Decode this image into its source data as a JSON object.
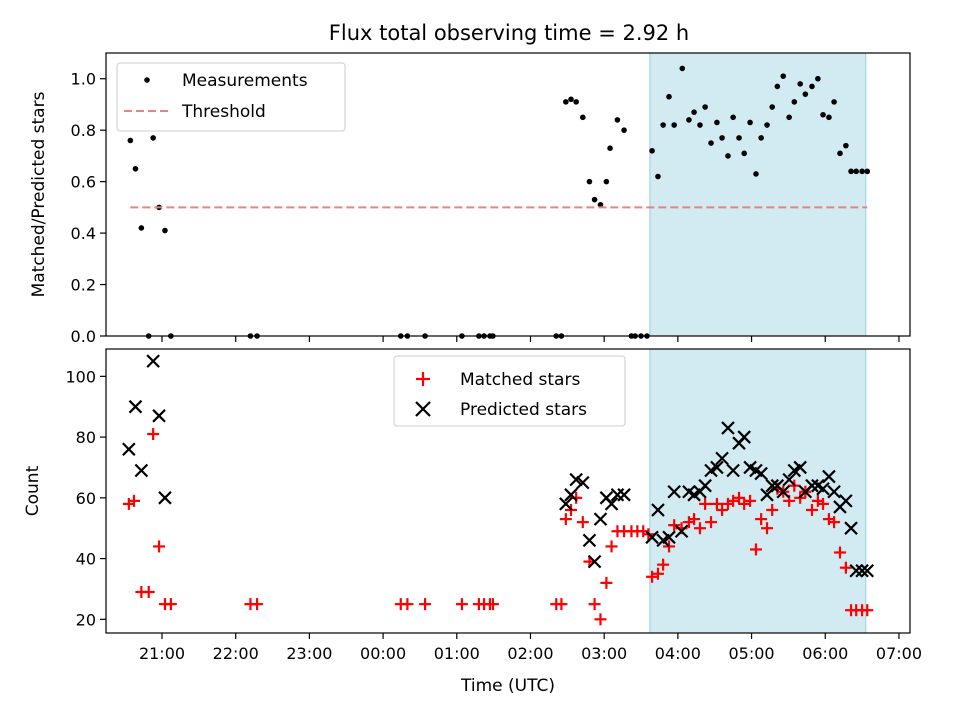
{
  "title": "Flux total observing time = 2.92 h",
  "chart_data": [
    {
      "type": "scatter",
      "ylabel": "Matched/Predicted stars",
      "ylim": [
        0,
        1.1
      ],
      "yticks": [
        0.0,
        0.2,
        0.4,
        0.6,
        0.8,
        1.0
      ],
      "ytick_labels": [
        "0.0",
        "0.2",
        "0.4",
        "0.6",
        "0.8",
        "1.0"
      ],
      "xlim": [
        20.24,
        31.15
      ],
      "highlight_span": [
        27.62,
        30.55
      ],
      "legend": {
        "placement": "top-left",
        "entries": [
          "Measurements",
          "Threshold"
        ]
      },
      "series": [
        {
          "name": "Measurements",
          "marker": "dot",
          "color": "#000000",
          "x": [
            20.57,
            20.64,
            20.72,
            20.88,
            20.96,
            21.04,
            20.82,
            21.12,
            22.2,
            22.29,
            24.24,
            24.33,
            24.57,
            25.07,
            25.3,
            25.37,
            25.45,
            25.49,
            26.35,
            26.42,
            26.48,
            26.55,
            26.62,
            26.71,
            26.8,
            26.87,
            26.95,
            27.03,
            27.08,
            27.18,
            27.27,
            27.37,
            27.42,
            27.5,
            27.58,
            27.65,
            27.73,
            27.8,
            27.88,
            27.95,
            28.06,
            28.15,
            28.22,
            28.3,
            28.37,
            28.45,
            28.53,
            28.6,
            28.68,
            28.75,
            28.83,
            28.9,
            28.98,
            29.06,
            29.13,
            29.21,
            29.28,
            29.35,
            29.43,
            29.51,
            29.58,
            29.66,
            29.73,
            29.82,
            29.9,
            29.97,
            30.05,
            30.12,
            30.2,
            30.28,
            30.35,
            30.42,
            30.5,
            30.57
          ],
          "y": [
            0.76,
            0.65,
            0.42,
            0.77,
            0.5,
            0.41,
            0.0,
            0.0,
            0.0,
            0.0,
            0.0,
            0.0,
            0.0,
            0.0,
            0.0,
            0.0,
            0.0,
            0.0,
            0.0,
            0.0,
            0.91,
            0.92,
            0.91,
            0.85,
            0.6,
            0.53,
            0.51,
            0.6,
            0.73,
            0.84,
            0.8,
            0.0,
            0.0,
            0.0,
            0.0,
            0.72,
            0.62,
            0.82,
            0.93,
            0.82,
            1.04,
            0.84,
            0.87,
            0.82,
            0.89,
            0.75,
            0.83,
            0.77,
            0.7,
            0.85,
            0.77,
            0.71,
            0.83,
            0.63,
            0.77,
            0.82,
            0.89,
            0.97,
            1.01,
            0.85,
            0.91,
            0.98,
            0.94,
            0.97,
            1.0,
            0.86,
            0.85,
            0.91,
            0.71,
            0.74,
            0.64,
            0.64,
            0.64,
            0.64
          ]
        },
        {
          "name": "Threshold",
          "marker": "dashed-line",
          "color": "#f08080",
          "x": [
            20.57,
            30.57
          ],
          "y": [
            0.5,
            0.5
          ]
        }
      ]
    },
    {
      "type": "scatter",
      "ylabel": "Count",
      "xlabel": "Time (UTC)",
      "ylim": [
        15.5,
        109
      ],
      "yticks": [
        20,
        40,
        60,
        80,
        100
      ],
      "ytick_labels": [
        "20",
        "40",
        "60",
        "80",
        "100"
      ],
      "xlim": [
        20.24,
        31.15
      ],
      "xticks": [
        21,
        22,
        23,
        24,
        25,
        26,
        27,
        28,
        29,
        30,
        31
      ],
      "xtick_labels": [
        "21:00",
        "22:00",
        "23:00",
        "00:00",
        "01:00",
        "02:00",
        "03:00",
        "04:00",
        "05:00",
        "06:00",
        "07:00"
      ],
      "highlight_span": [
        27.62,
        30.55
      ],
      "legend": {
        "placement": "upper-center",
        "entries": [
          "Matched stars",
          "Predicted stars"
        ]
      },
      "series": [
        {
          "name": "Matched stars",
          "marker": "plus",
          "color": "#ff0000",
          "x": [
            20.55,
            20.62,
            20.72,
            20.82,
            20.88,
            20.96,
            21.04,
            21.12,
            22.2,
            22.29,
            24.24,
            24.33,
            24.57,
            25.07,
            25.3,
            25.37,
            25.45,
            25.49,
            26.35,
            26.42,
            26.48,
            26.55,
            26.62,
            26.71,
            26.8,
            26.87,
            26.95,
            27.03,
            27.1,
            27.18,
            27.27,
            27.37,
            27.45,
            27.53,
            27.6,
            27.65,
            27.73,
            27.8,
            27.88,
            27.95,
            28.05,
            28.15,
            28.22,
            28.3,
            28.37,
            28.45,
            28.53,
            28.6,
            28.68,
            28.75,
            28.83,
            28.9,
            28.98,
            29.06,
            29.13,
            29.21,
            29.28,
            29.35,
            29.43,
            29.51,
            29.58,
            29.66,
            29.73,
            29.82,
            29.9,
            29.97,
            30.05,
            30.12,
            30.2,
            30.28,
            30.35,
            30.42,
            30.5,
            30.57
          ],
          "y": [
            58,
            59,
            29,
            29,
            81,
            44,
            25,
            25,
            25,
            25,
            25,
            25,
            25,
            25,
            25,
            25,
            25,
            25,
            25,
            25,
            53,
            56,
            60,
            52,
            39,
            25,
            20,
            32,
            44,
            49,
            49,
            49,
            49,
            49,
            48,
            34,
            35,
            38,
            44,
            51,
            50,
            52,
            53,
            50,
            58,
            52,
            58,
            56,
            58,
            59,
            60,
            58,
            59,
            43,
            53,
            50,
            56,
            63,
            62,
            59,
            64,
            60,
            62,
            56,
            59,
            58,
            53,
            52,
            42,
            37,
            23,
            23,
            23,
            23
          ]
        },
        {
          "name": "Predicted stars",
          "marker": "x",
          "color": "#000000",
          "x": [
            20.55,
            20.64,
            20.72,
            20.88,
            20.96,
            21.04,
            26.48,
            26.55,
            26.62,
            26.71,
            26.8,
            26.87,
            26.95,
            27.03,
            27.1,
            27.18,
            27.27,
            27.65,
            27.73,
            27.8,
            27.88,
            27.95,
            28.05,
            28.15,
            28.22,
            28.3,
            28.37,
            28.45,
            28.53,
            28.6,
            28.68,
            28.75,
            28.83,
            28.9,
            28.98,
            29.06,
            29.13,
            29.21,
            29.28,
            29.35,
            29.43,
            29.51,
            29.58,
            29.66,
            29.73,
            29.82,
            29.9,
            29.97,
            30.05,
            30.12,
            30.2,
            30.28,
            30.35,
            30.42,
            30.5,
            30.57
          ],
          "y": [
            76,
            90,
            69,
            105,
            87,
            60,
            58,
            61,
            66,
            65,
            46,
            39,
            53,
            60,
            58,
            61,
            61,
            47,
            56,
            46,
            47,
            62,
            49,
            62,
            61,
            62,
            64,
            69,
            70,
            73,
            83,
            69,
            78,
            80,
            70,
            69,
            68,
            61,
            64,
            64,
            62,
            66,
            69,
            70,
            62,
            64,
            64,
            63,
            67,
            62,
            57,
            59,
            50,
            36,
            36,
            36
          ]
        }
      ]
    }
  ]
}
